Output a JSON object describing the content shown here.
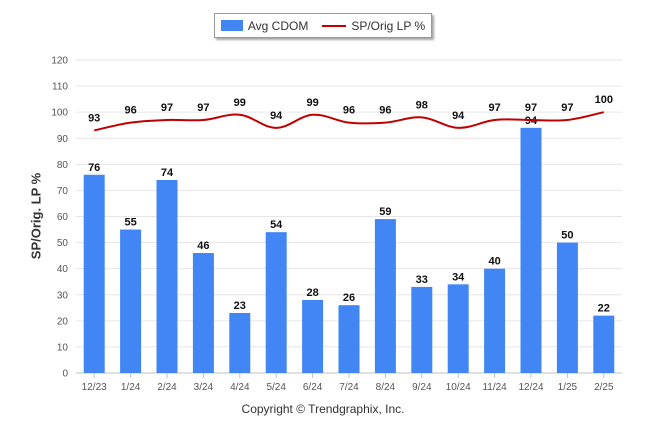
{
  "chart_data": {
    "type": "bar",
    "categories": [
      "12/23",
      "1/24",
      "2/24",
      "3/24",
      "4/24",
      "5/24",
      "6/24",
      "7/24",
      "8/24",
      "9/24",
      "10/24",
      "11/24",
      "12/24",
      "1/25",
      "2/25"
    ],
    "series": [
      {
        "name": "Avg CDOM",
        "type": "bar",
        "color": "#4285f4",
        "values": [
          76,
          55,
          74,
          46,
          23,
          54,
          28,
          26,
          59,
          33,
          34,
          40,
          94,
          50,
          22
        ]
      },
      {
        "name": "SP/Orig LP %",
        "type": "line",
        "color": "#c00000",
        "values": [
          93,
          96,
          97,
          97,
          99,
          94,
          99,
          96,
          96,
          98,
          94,
          97,
          97,
          97,
          100
        ]
      }
    ],
    "title": "",
    "xlabel": "",
    "ylabel": "SP/Orig. LP %",
    "ylim": [
      0,
      120
    ],
    "yticks": [
      0,
      10,
      20,
      30,
      40,
      50,
      60,
      70,
      80,
      90,
      100,
      110,
      120
    ],
    "grid": true,
    "legend_position": "top-center"
  },
  "legend": {
    "bar_label": "Avg CDOM",
    "line_label": "SP/Orig LP %"
  },
  "footer": {
    "copyright": "Copyright © Trendgraphix, Inc."
  }
}
